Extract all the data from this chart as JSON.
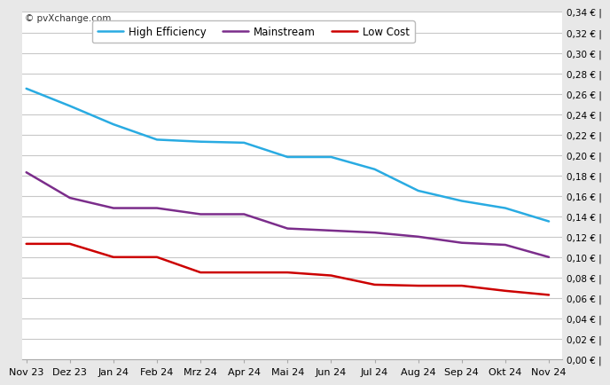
{
  "x_labels": [
    "Nov 23",
    "Dez 23",
    "Jan 24",
    "Feb 24",
    "Mrz 24",
    "Apr 24",
    "Mai 24",
    "Jun 24",
    "Jul 24",
    "Aug 24",
    "Sep 24",
    "Okt 24",
    "Nov 24"
  ],
  "high_efficiency": [
    0.265,
    0.248,
    0.23,
    0.215,
    0.213,
    0.212,
    0.198,
    0.198,
    0.186,
    0.165,
    0.155,
    0.148,
    0.135
  ],
  "mainstream": [
    0.183,
    0.158,
    0.148,
    0.148,
    0.142,
    0.142,
    0.128,
    0.126,
    0.124,
    0.12,
    0.114,
    0.112,
    0.1
  ],
  "low_cost": [
    0.113,
    0.113,
    0.1,
    0.1,
    0.085,
    0.085,
    0.085,
    0.082,
    0.073,
    0.072,
    0.072,
    0.067,
    0.063
  ],
  "colors": {
    "high_efficiency": "#29ABE2",
    "mainstream": "#7B2D8B",
    "low_cost": "#CC0000"
  },
  "ylim": [
    0.0,
    0.34
  ],
  "ytick_step": 0.02,
  "watermark": "© pvXchange.com",
  "legend_labels": [
    "High Efficiency",
    "Mainstream",
    "Low Cost"
  ],
  "background_color": "#E8E8E8",
  "plot_bg_color": "#FFFFFF",
  "grid_color": "#C8C8C8",
  "spine_color": "#AAAAAA"
}
